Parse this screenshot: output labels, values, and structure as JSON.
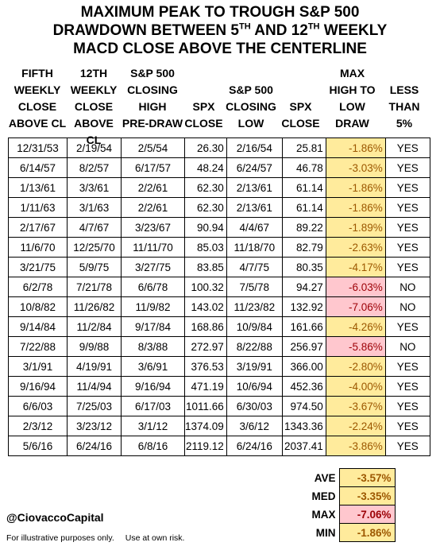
{
  "title": {
    "line1": "MAXIMUM PEAK TO TROUGH S&P 500",
    "line2_a": "DRAWDOWN BETWEEN 5",
    "line2_sup1": "TH",
    "line2_b": " AND 12",
    "line2_sup2": "TH",
    "line2_c": " WEEKLY",
    "line3": "MACD CLOSE ABOVE THE CENTERLINE"
  },
  "headers": [
    [
      "FIFTH",
      "WEEKLY",
      "CLOSE",
      "ABOVE CL"
    ],
    [
      "12TH",
      "WEEKLY",
      "CLOSE",
      "ABOVE CL"
    ],
    [
      "S&P 500",
      "CLOSING",
      "HIGH",
      "PRE-DRAW"
    ],
    [
      "SPX",
      "CLOSE"
    ],
    [
      "S&P 500",
      "CLOSING",
      "LOW"
    ],
    [
      "SPX",
      "CLOSE"
    ],
    [
      "MAX",
      "HIGH TO",
      "LOW",
      "DRAW"
    ],
    [
      "LESS",
      "THAN",
      "5%"
    ]
  ],
  "rows": [
    [
      "12/31/53",
      "2/19/54",
      "2/5/54",
      "26.30",
      "2/16/54",
      "25.81",
      "-1.86%",
      "YES"
    ],
    [
      "6/14/57",
      "8/2/57",
      "6/17/57",
      "48.24",
      "6/24/57",
      "46.78",
      "-3.03%",
      "YES"
    ],
    [
      "1/13/61",
      "3/3/61",
      "2/2/61",
      "62.30",
      "2/13/61",
      "61.14",
      "-1.86%",
      "YES"
    ],
    [
      "1/11/63",
      "3/1/63",
      "2/2/61",
      "62.30",
      "2/13/61",
      "61.14",
      "-1.86%",
      "YES"
    ],
    [
      "2/17/67",
      "4/7/67",
      "3/23/67",
      "90.94",
      "4/4/67",
      "89.22",
      "-1.89%",
      "YES"
    ],
    [
      "11/6/70",
      "12/25/70",
      "11/11/70",
      "85.03",
      "11/18/70",
      "82.79",
      "-2.63%",
      "YES"
    ],
    [
      "3/21/75",
      "5/9/75",
      "3/27/75",
      "83.85",
      "4/7/75",
      "80.35",
      "-4.17%",
      "YES"
    ],
    [
      "6/2/78",
      "7/21/78",
      "6/6/78",
      "100.32",
      "7/5/78",
      "94.27",
      "-6.03%",
      "NO"
    ],
    [
      "10/8/82",
      "11/26/82",
      "11/9/82",
      "143.02",
      "11/23/82",
      "132.92",
      "-7.06%",
      "NO"
    ],
    [
      "9/14/84",
      "11/2/84",
      "9/17/84",
      "168.86",
      "10/9/84",
      "161.66",
      "-4.26%",
      "YES"
    ],
    [
      "7/22/88",
      "9/9/88",
      "8/3/88",
      "272.97",
      "8/22/88",
      "256.97",
      "-5.86%",
      "NO"
    ],
    [
      "3/1/91",
      "4/19/91",
      "3/6/91",
      "376.53",
      "3/19/91",
      "366.00",
      "-2.80%",
      "YES"
    ],
    [
      "9/16/94",
      "11/4/94",
      "9/16/94",
      "471.19",
      "10/6/94",
      "452.36",
      "-4.00%",
      "YES"
    ],
    [
      "6/6/03",
      "7/25/03",
      "6/17/03",
      "1011.66",
      "6/30/03",
      "974.50",
      "-3.67%",
      "YES"
    ],
    [
      "2/3/12",
      "3/23/12",
      "3/1/12",
      "1374.09",
      "3/6/12",
      "1343.36",
      "-2.24%",
      "YES"
    ],
    [
      "5/6/16",
      "6/24/16",
      "6/8/16",
      "2119.12",
      "6/24/16",
      "2037.41",
      "-3.86%",
      "YES"
    ]
  ],
  "stats": [
    {
      "label": "AVE",
      "value": "-3.57%",
      "status": "ok"
    },
    {
      "label": "MED",
      "value": "-3.35%",
      "status": "ok"
    },
    {
      "label": "MAX",
      "value": "-7.06%",
      "status": "bad"
    },
    {
      "label": "MIN",
      "value": "-1.86%",
      "status": "ok"
    }
  ],
  "colors": {
    "ok_fill": "#ffeb9c",
    "ok_text": "#9c5700",
    "bad_fill": "#ffc7ce",
    "bad_text": "#9c0006"
  },
  "handle": "@CiovaccoCapital",
  "disclaimer": {
    "part1": "For illustrative purposes only.",
    "part2": "Use at own risk."
  }
}
